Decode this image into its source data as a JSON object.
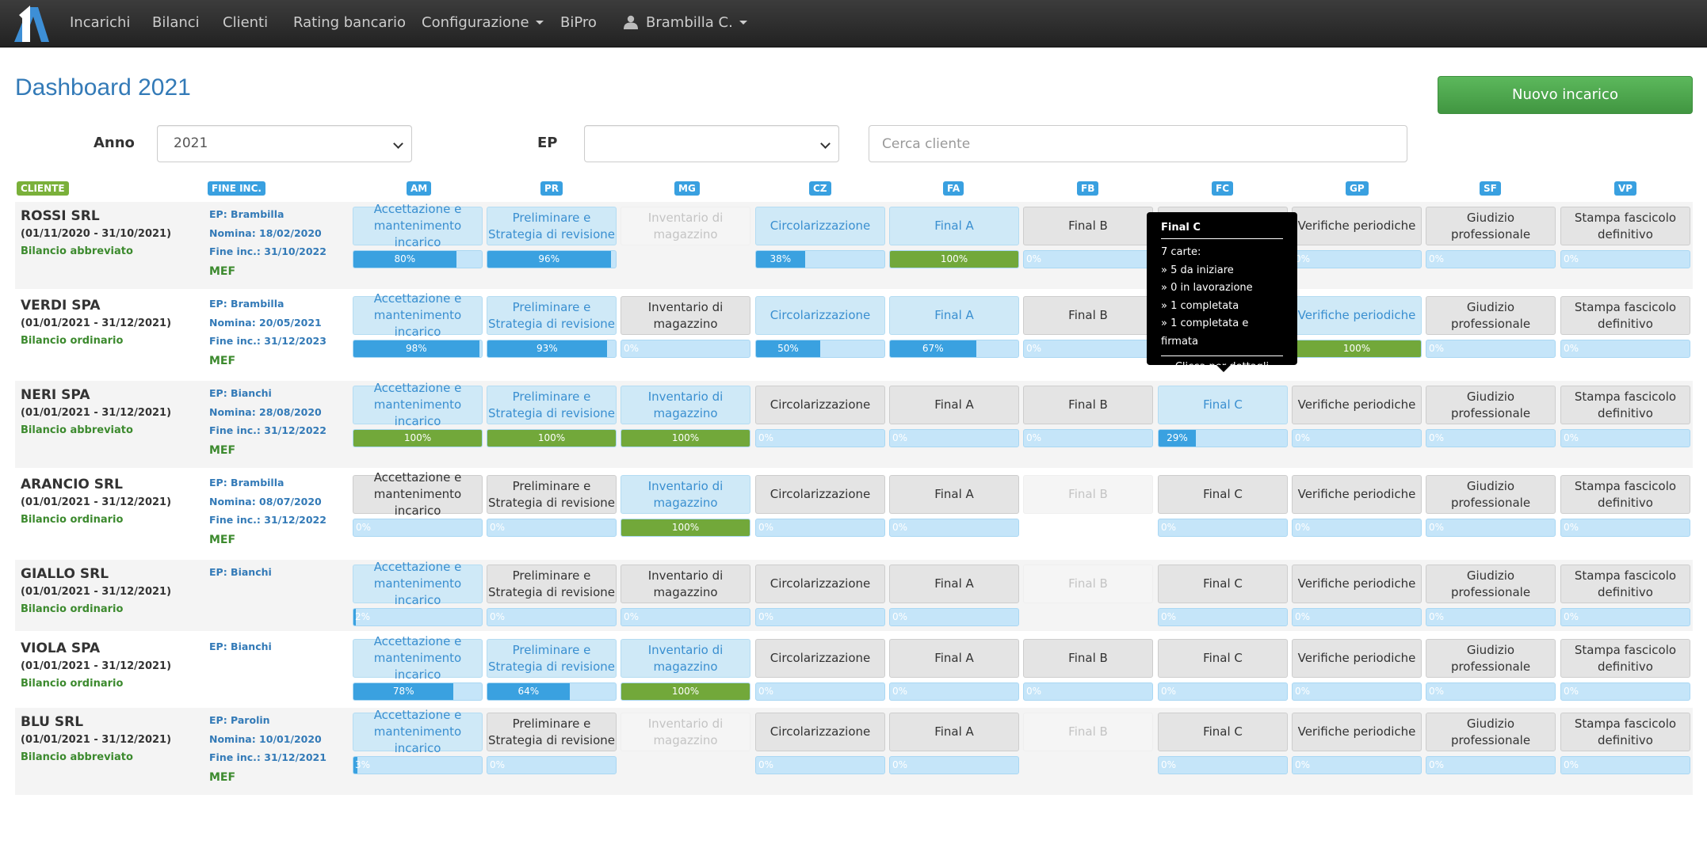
{
  "nav": {
    "items": [
      "Incarichi",
      "Bilanci",
      "Clienti",
      "Rating bancario",
      "Configurazione",
      "BiPro"
    ],
    "user": "Brambilla C."
  },
  "page": {
    "title": "Dashboard 2021",
    "new_button": "Nuovo incarico"
  },
  "filters": {
    "anno_label": "Anno",
    "anno_value": "2021",
    "ep_label": "EP",
    "ep_value": "",
    "search_placeholder": "Cerca cliente"
  },
  "columns": {
    "cliente": "CLIENTE",
    "fine": "FINE INC.",
    "phases": [
      "AM",
      "PR",
      "MG",
      "CZ",
      "FA",
      "FB",
      "FC",
      "GP",
      "SF",
      "VP"
    ]
  },
  "phase_names": [
    "Accettazione e mantenimento incarico",
    "Preliminare e Strategia di revisione",
    "Inventario di magazzino",
    "Circolarizzazione",
    "Final A",
    "Final B",
    "Final C",
    "Verifiche periodiche",
    "Giudizio professionale",
    "Stampa fascicolo definitivo"
  ],
  "rows": [
    {
      "name": "ROSSI SRL",
      "period": "(01/11/2020 - 31/10/2021)",
      "type": "Bilancio abbreviato",
      "ep": "EP: Brambilla",
      "nomina": "Nomina: 18/02/2020",
      "fine": "Fine inc.: 31/10/2022",
      "mef": "MEF",
      "states": [
        "a",
        "a",
        "d",
        "a",
        "a",
        "i",
        "i",
        "i",
        "i",
        "i"
      ],
      "progress": [
        80,
        96,
        null,
        38,
        100,
        0,
        0,
        0,
        0,
        0
      ]
    },
    {
      "name": "VERDI SPA",
      "period": "(01/01/2021 - 31/12/2021)",
      "type": "Bilancio ordinario",
      "ep": "EP: Brambilla",
      "nomina": "Nomina: 20/05/2021",
      "fine": "Fine inc.: 31/12/2023",
      "mef": "MEF",
      "states": [
        "a",
        "a",
        "i",
        "a",
        "a",
        "i",
        "i",
        "a",
        "i",
        "i"
      ],
      "progress": [
        98,
        93,
        0,
        50,
        67,
        0,
        0,
        100,
        0,
        0
      ]
    },
    {
      "name": "NERI SPA",
      "period": "(01/01/2021 - 31/12/2021)",
      "type": "Bilancio abbreviato",
      "ep": "EP: Bianchi",
      "nomina": "Nomina: 28/08/2020",
      "fine": "Fine inc.: 31/12/2022",
      "mef": "MEF",
      "states": [
        "a",
        "a",
        "a",
        "i",
        "i",
        "i",
        "a",
        "i",
        "i",
        "i"
      ],
      "progress": [
        100,
        100,
        100,
        0,
        0,
        0,
        29,
        0,
        0,
        0
      ]
    },
    {
      "name": "ARANCIO SRL",
      "period": "(01/01/2021 - 31/12/2021)",
      "type": "Bilancio ordinario",
      "ep": "EP: Brambilla",
      "nomina": "Nomina: 08/07/2020",
      "fine": "Fine inc.: 31/12/2022",
      "mef": "MEF",
      "states": [
        "i",
        "i",
        "a",
        "i",
        "i",
        "d",
        "i",
        "i",
        "i",
        "i"
      ],
      "progress": [
        0,
        0,
        100,
        0,
        0,
        null,
        0,
        0,
        0,
        0
      ]
    },
    {
      "name": "GIALLO SRL",
      "period": "(01/01/2021 - 31/12/2021)",
      "type": "Bilancio ordinario",
      "ep": "EP: Bianchi",
      "nomina": "",
      "fine": "",
      "mef": "",
      "states": [
        "a",
        "i",
        "i",
        "i",
        "i",
        "d",
        "i",
        "i",
        "i",
        "i"
      ],
      "progress": [
        2,
        0,
        0,
        0,
        0,
        null,
        0,
        0,
        0,
        0
      ]
    },
    {
      "name": "VIOLA SPA",
      "period": "(01/01/2021 - 31/12/2021)",
      "type": "Bilancio ordinario",
      "ep": "EP: Bianchi",
      "nomina": "",
      "fine": "",
      "mef": "",
      "states": [
        "a",
        "a",
        "a",
        "i",
        "i",
        "i",
        "i",
        "i",
        "i",
        "i"
      ],
      "progress": [
        78,
        64,
        100,
        0,
        0,
        0,
        0,
        0,
        0,
        0
      ]
    },
    {
      "name": "BLU SRL",
      "period": "(01/01/2021 - 31/12/2021)",
      "type": "Bilancio abbreviato",
      "ep": "EP: Parolin",
      "nomina": "Nomina: 10/01/2020",
      "fine": "Fine inc.: 31/12/2021",
      "mef": "MEF",
      "states": [
        "a",
        "i",
        "d",
        "i",
        "i",
        "d",
        "i",
        "i",
        "i",
        "i"
      ],
      "progress": [
        3,
        0,
        null,
        0,
        0,
        null,
        0,
        0,
        0,
        0
      ]
    }
  ],
  "tooltip": {
    "title": "Final C",
    "lines": [
      "7 carte:",
      "» 5 da iniziare",
      "» 0 in lavorazione",
      "» 1 completata",
      "» 1 completata e firmata"
    ],
    "footer": "Clicca per dettagli"
  },
  "colors": {
    "brand": "#337ab7",
    "accent": "#39a0e0",
    "success": "#72a83a"
  }
}
